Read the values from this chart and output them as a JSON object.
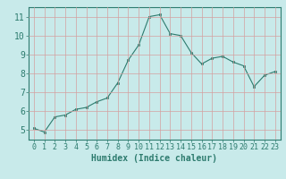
{
  "x": [
    0,
    1,
    2,
    3,
    4,
    5,
    6,
    7,
    8,
    9,
    10,
    11,
    12,
    13,
    14,
    15,
    16,
    17,
    18,
    19,
    20,
    21,
    22,
    23
  ],
  "y": [
    5.1,
    4.9,
    5.7,
    5.8,
    6.1,
    6.2,
    6.5,
    6.7,
    7.5,
    8.7,
    9.5,
    11.0,
    11.1,
    10.1,
    10.0,
    9.1,
    8.5,
    8.8,
    8.9,
    8.6,
    8.4,
    7.3,
    7.9,
    8.1
  ],
  "xlabel": "Humidex (Indice chaleur)",
  "ylim": [
    4.5,
    11.5
  ],
  "xlim": [
    -0.5,
    23.5
  ],
  "yticks": [
    5,
    6,
    7,
    8,
    9,
    10,
    11
  ],
  "xticks": [
    0,
    1,
    2,
    3,
    4,
    5,
    6,
    7,
    8,
    9,
    10,
    11,
    12,
    13,
    14,
    15,
    16,
    17,
    18,
    19,
    20,
    21,
    22,
    23
  ],
  "line_color": "#2d7b6e",
  "marker_color": "#2d7b6e",
  "bg_color": "#c8eaea",
  "grid_color": "#d4a0a0",
  "plot_bg": "#c8eaea",
  "tick_color": "#2d7b6e",
  "xlabel_fontsize": 7,
  "tick_fontsize": 6
}
